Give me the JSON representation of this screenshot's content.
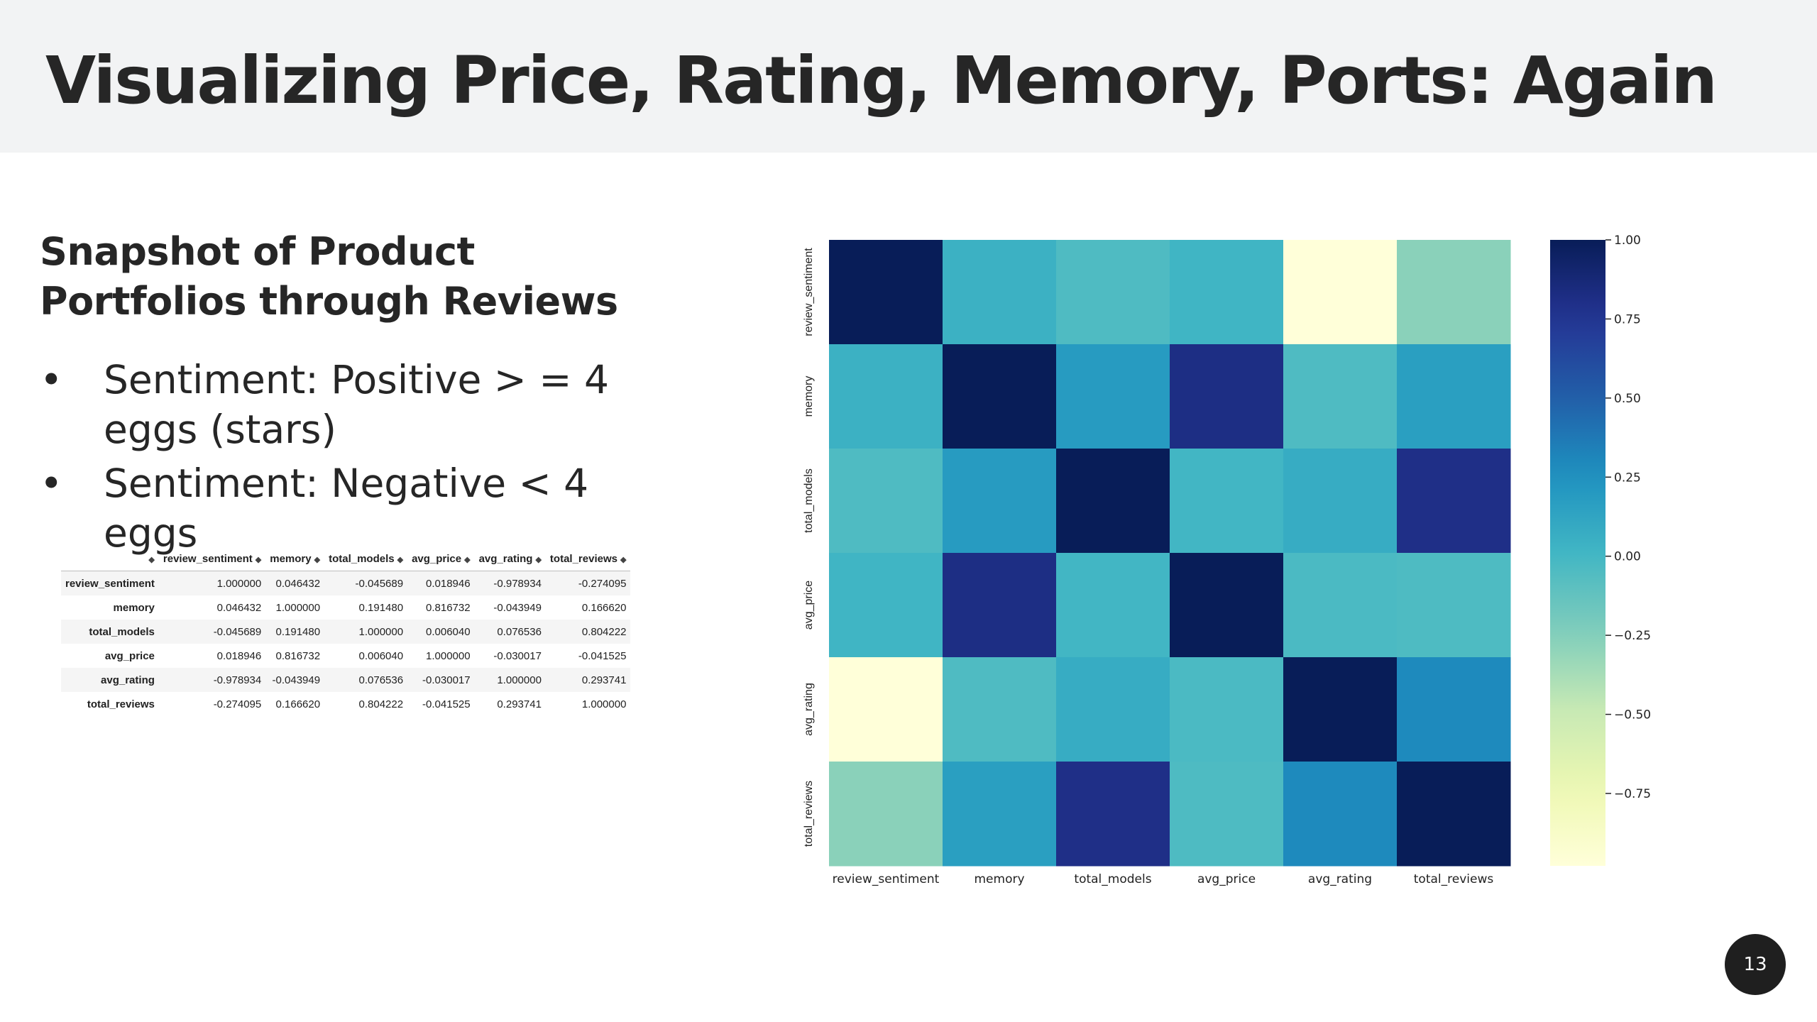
{
  "slide": {
    "title": "Visualizing Price, Rating, Memory, Ports: Again",
    "subtitle": "Snapshot of Product Portfolios through Reviews",
    "bullet_symbol": "•",
    "bullets": [
      "Sentiment: Positive > = 4 eggs (stars)",
      "Sentiment: Negative < 4 eggs"
    ],
    "page_number": "13"
  },
  "table": {
    "columns": [
      "review_sentiment",
      "memory",
      "total_models",
      "avg_price",
      "avg_rating",
      "total_reviews"
    ],
    "sort_glyph": "◆",
    "rows": [
      {
        "label": "review_sentiment",
        "cells": [
          "1.000000",
          "0.046432",
          "-0.045689",
          "0.018946",
          "-0.978934",
          "-0.274095"
        ]
      },
      {
        "label": "memory",
        "cells": [
          "0.046432",
          "1.000000",
          "0.191480",
          "0.816732",
          "-0.043949",
          "0.166620"
        ]
      },
      {
        "label": "total_models",
        "cells": [
          "-0.045689",
          "0.191480",
          "1.000000",
          "0.006040",
          "0.076536",
          "0.804222"
        ]
      },
      {
        "label": "avg_price",
        "cells": [
          "0.018946",
          "0.816732",
          "0.006040",
          "1.000000",
          "-0.030017",
          "-0.041525"
        ]
      },
      {
        "label": "avg_rating",
        "cells": [
          "-0.978934",
          "-0.043949",
          "0.076536",
          "-0.030017",
          "1.000000",
          "0.293741"
        ]
      },
      {
        "label": "total_reviews",
        "cells": [
          "-0.274095",
          "0.166620",
          "0.804222",
          "-0.041525",
          "0.293741",
          "1.000000"
        ]
      }
    ]
  },
  "chart_data": {
    "type": "heatmap",
    "title": "",
    "xlabel": "",
    "ylabel": "",
    "x_categories": [
      "review_sentiment",
      "memory",
      "total_models",
      "avg_price",
      "avg_rating",
      "total_reviews"
    ],
    "y_categories": [
      "review_sentiment",
      "memory",
      "total_models",
      "avg_price",
      "avg_rating",
      "total_reviews"
    ],
    "values": [
      [
        1.0,
        0.046432,
        -0.045689,
        0.018946,
        -0.978934,
        -0.274095
      ],
      [
        0.046432,
        1.0,
        0.19148,
        0.816732,
        -0.043949,
        0.16662
      ],
      [
        -0.045689,
        0.19148,
        1.0,
        0.00604,
        0.076536,
        0.804222
      ],
      [
        0.018946,
        0.816732,
        0.00604,
        1.0,
        -0.030017,
        -0.041525
      ],
      [
        -0.978934,
        -0.043949,
        0.076536,
        -0.030017,
        1.0,
        0.293741
      ],
      [
        -0.274095,
        0.16662,
        0.804222,
        -0.041525,
        0.293741,
        1.0
      ]
    ],
    "colormap": "YlGnBu",
    "vmin": -0.978934,
    "vmax": 1.0,
    "colorbar_ticks": [
      1.0,
      0.75,
      0.5,
      0.25,
      0.0,
      -0.25,
      -0.5,
      -0.75
    ],
    "colorbar_tick_labels": [
      "1.00",
      "0.75",
      "0.50",
      "0.25",
      "0.00",
      "−0.25",
      "−0.50",
      "−0.75"
    ]
  }
}
